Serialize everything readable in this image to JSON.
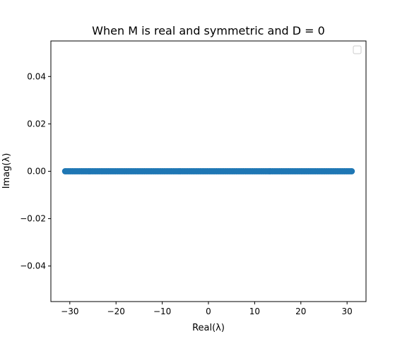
{
  "chart_data": {
    "type": "scatter",
    "title": "When M is real and symmetric and D = 0",
    "xlabel": "Real(λ)",
    "ylabel": "Imag(λ)",
    "xlim": [
      -34.1,
      34.1
    ],
    "ylim": [
      -0.055,
      0.055
    ],
    "x_ticks": [
      -30,
      -20,
      -10,
      0,
      10,
      20,
      30
    ],
    "x_tick_labels": [
      "−30",
      "−20",
      "−10",
      "0",
      "10",
      "20",
      "30"
    ],
    "y_ticks": [
      0.04,
      0.02,
      0.0,
      -0.02,
      -0.04
    ],
    "y_tick_labels": [
      "0.04",
      "0.02",
      "0.00",
      "−0.02",
      "−0.04"
    ],
    "grid": false,
    "legend": "upper right, empty",
    "series": [
      {
        "color": "#1f77b4",
        "x_min": -31,
        "x_max": 31,
        "y": 0
      }
    ]
  }
}
